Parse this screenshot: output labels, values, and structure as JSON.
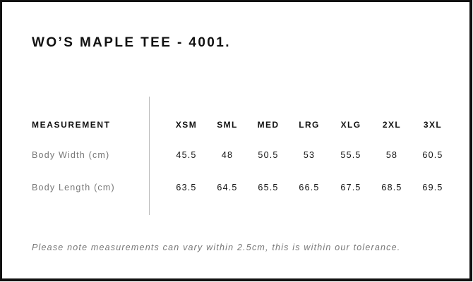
{
  "title": "WO’S MAPLE TEE - 4001.",
  "table": {
    "header_label": "MEASUREMENT",
    "sizes": [
      "XSM",
      "SML",
      "MED",
      "LRG",
      "XLG",
      "2XL",
      "3XL"
    ],
    "rows": [
      {
        "label": "Body Width (cm)",
        "values": [
          "45.5",
          "48",
          "50.5",
          "53",
          "55.5",
          "58",
          "60.5"
        ]
      },
      {
        "label": "Body Length (cm)",
        "values": [
          "63.5",
          "64.5",
          "65.5",
          "66.5",
          "67.5",
          "68.5",
          "69.5"
        ]
      }
    ]
  },
  "note": "Please note measurements can vary within 2.5cm, this is within our tolerance."
}
